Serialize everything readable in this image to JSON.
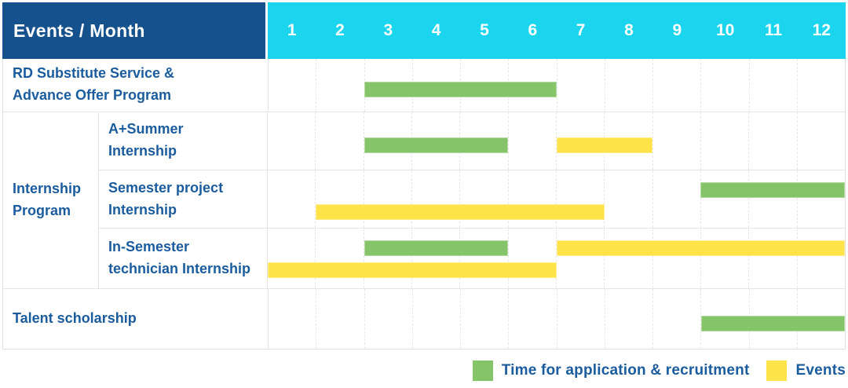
{
  "header": {
    "title": "Events / Month",
    "months": [
      "1",
      "2",
      "3",
      "4",
      "5",
      "6",
      "7",
      "8",
      "9",
      "10",
      "11",
      "12"
    ]
  },
  "table": {
    "rows": [
      {
        "kind": "simple",
        "label": "RD Substitute Service &\nAdvance Offer Program"
      },
      {
        "kind": "group",
        "label": "Internship\nProgram",
        "children": [
          {
            "label": "A+Summer\nInternship"
          },
          {
            "label": "Semester project\nInternship"
          },
          {
            "label": "In-Semester\ntechnician Internship"
          }
        ]
      },
      {
        "kind": "simple",
        "label": "Talent scholarship"
      }
    ]
  },
  "chart_data": {
    "type": "bar",
    "subtype": "gantt-schedule",
    "title": "Events / Month",
    "x_axis": {
      "label": "Month",
      "ticks": [
        1,
        2,
        3,
        4,
        5,
        6,
        7,
        8,
        9,
        10,
        11,
        12
      ],
      "range": [
        1,
        12
      ]
    },
    "rows": [
      "RD Substitute Service & Advance Offer Program",
      "A+Summer Internship",
      "Semester project Internship",
      "In-Semester technician Internship",
      "Talent scholarship"
    ],
    "bars": [
      {
        "row_index": 0,
        "row": "RD Substitute Service & Advance Offer Program",
        "series": "recruitment",
        "start_month": 3,
        "end_month": 6,
        "lane": "mid"
      },
      {
        "row_index": 1,
        "row": "A+Summer Internship",
        "series": "recruitment",
        "start_month": 3,
        "end_month": 5,
        "lane": "mid"
      },
      {
        "row_index": 1,
        "row": "A+Summer Internship",
        "series": "events",
        "start_month": 7,
        "end_month": 8,
        "lane": "mid"
      },
      {
        "row_index": 2,
        "row": "Semester project Internship",
        "series": "recruitment",
        "start_month": 10,
        "end_month": 12,
        "lane": "top"
      },
      {
        "row_index": 2,
        "row": "Semester project Internship",
        "series": "events",
        "start_month": 2,
        "end_month": 7,
        "lane": "bottom"
      },
      {
        "row_index": 3,
        "row": "In-Semester technician Internship",
        "series": "recruitment",
        "start_month": 3,
        "end_month": 5,
        "lane": "top"
      },
      {
        "row_index": 3,
        "row": "In-Semester technician Internship",
        "series": "events",
        "start_month": 7,
        "end_month": 12,
        "lane": "top"
      },
      {
        "row_index": 3,
        "row": "In-Semester technician Internship",
        "series": "events",
        "start_month": 1,
        "end_month": 6,
        "lane": "bottom"
      },
      {
        "row_index": 4,
        "row": "Talent scholarship",
        "series": "recruitment",
        "start_month": 10,
        "end_month": 12,
        "lane": "mid"
      }
    ],
    "legend_position": "bottom-right",
    "grid": true
  },
  "legend": {
    "items": [
      {
        "key": "recruitment",
        "label": "Time for application & recruitment",
        "color": "#85c469"
      },
      {
        "key": "events",
        "label": "Events",
        "color": "#ffe348"
      }
    ]
  },
  "colors": {
    "header_bg": "#15518c",
    "months_bg": "#1bd5ee",
    "header_text": "#ffffff",
    "label_text": "#1b5c9e",
    "recruitment": "#85c469",
    "events": "#ffe348",
    "grid_line": "#e7e7e7"
  }
}
